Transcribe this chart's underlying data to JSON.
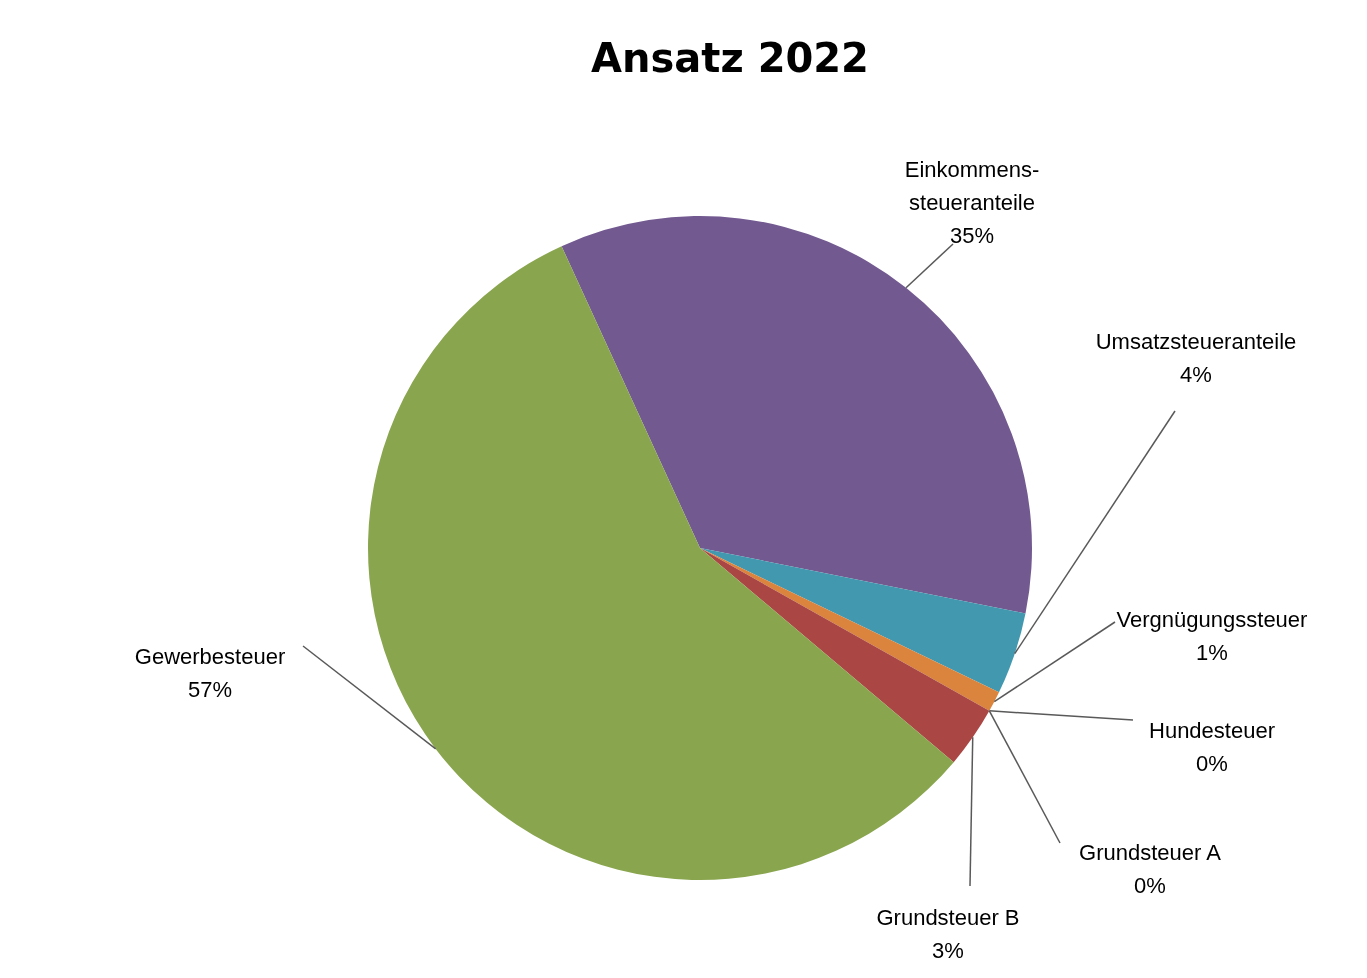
{
  "chart_data": {
    "type": "pie",
    "title": "Ansatz 2022",
    "categories": [
      "Einkommens-steueranteile",
      "Umsatzsteueranteile",
      "Vergnügungssteuer",
      "Hundesteuer",
      "Grundsteuer A",
      "Grundsteuer B",
      "Gewerbesteuer"
    ],
    "values": [
      35,
      4,
      1,
      0,
      0,
      3,
      57
    ],
    "value_labels": [
      "35%",
      "4%",
      "1%",
      "0%",
      "0%",
      "3%",
      "57%"
    ],
    "colors": [
      "#725990",
      "#4198af",
      "#db843d",
      "#93a9cf",
      "#4572a7",
      "#aa4643",
      "#89a54e"
    ]
  }
}
